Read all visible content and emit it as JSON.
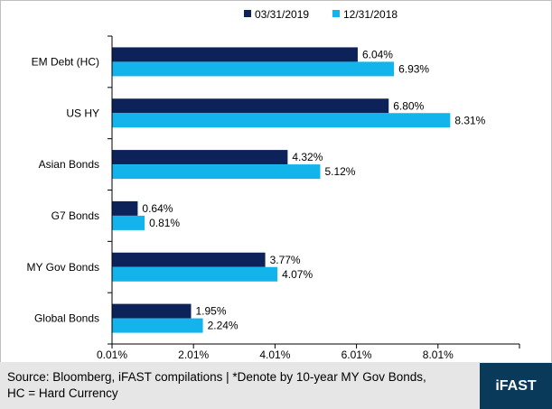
{
  "chart_data": {
    "type": "bar",
    "orientation": "horizontal",
    "categories": [
      "EM Debt (HC)",
      "US HY",
      "Asian Bonds",
      "G7 Bonds",
      "MY Gov Bonds",
      "Global Bonds"
    ],
    "series": [
      {
        "name": "03/31/2019",
        "color": "#0d2259",
        "values": [
          6.04,
          6.8,
          4.32,
          0.64,
          3.77,
          1.95
        ],
        "labels": [
          "6.04%",
          "6.80%",
          "4.32%",
          "0.64%",
          "3.77%",
          "1.95%"
        ]
      },
      {
        "name": "12/31/2018",
        "color": "#13b4ec",
        "values": [
          6.93,
          8.31,
          5.12,
          0.81,
          4.07,
          2.24
        ],
        "labels": [
          "6.93%",
          "8.31%",
          "5.12%",
          "0.81%",
          "4.07%",
          "2.24%"
        ]
      }
    ],
    "xaxis": {
      "ticks": [
        0.01,
        2.01,
        4.01,
        6.01,
        8.01
      ],
      "tick_labels": [
        "0.01%",
        "2.01%",
        "4.01%",
        "6.01%",
        "8.01%"
      ],
      "range": [
        0.01,
        10.01
      ]
    },
    "grid": false,
    "legend_position": "top"
  },
  "footer": {
    "line1": "Source: Bloomberg, iFAST compilations | *Denote by 10-year MY Gov Bonds,",
    "line2": "HC = Hard Currency",
    "logo": "iFAST"
  }
}
